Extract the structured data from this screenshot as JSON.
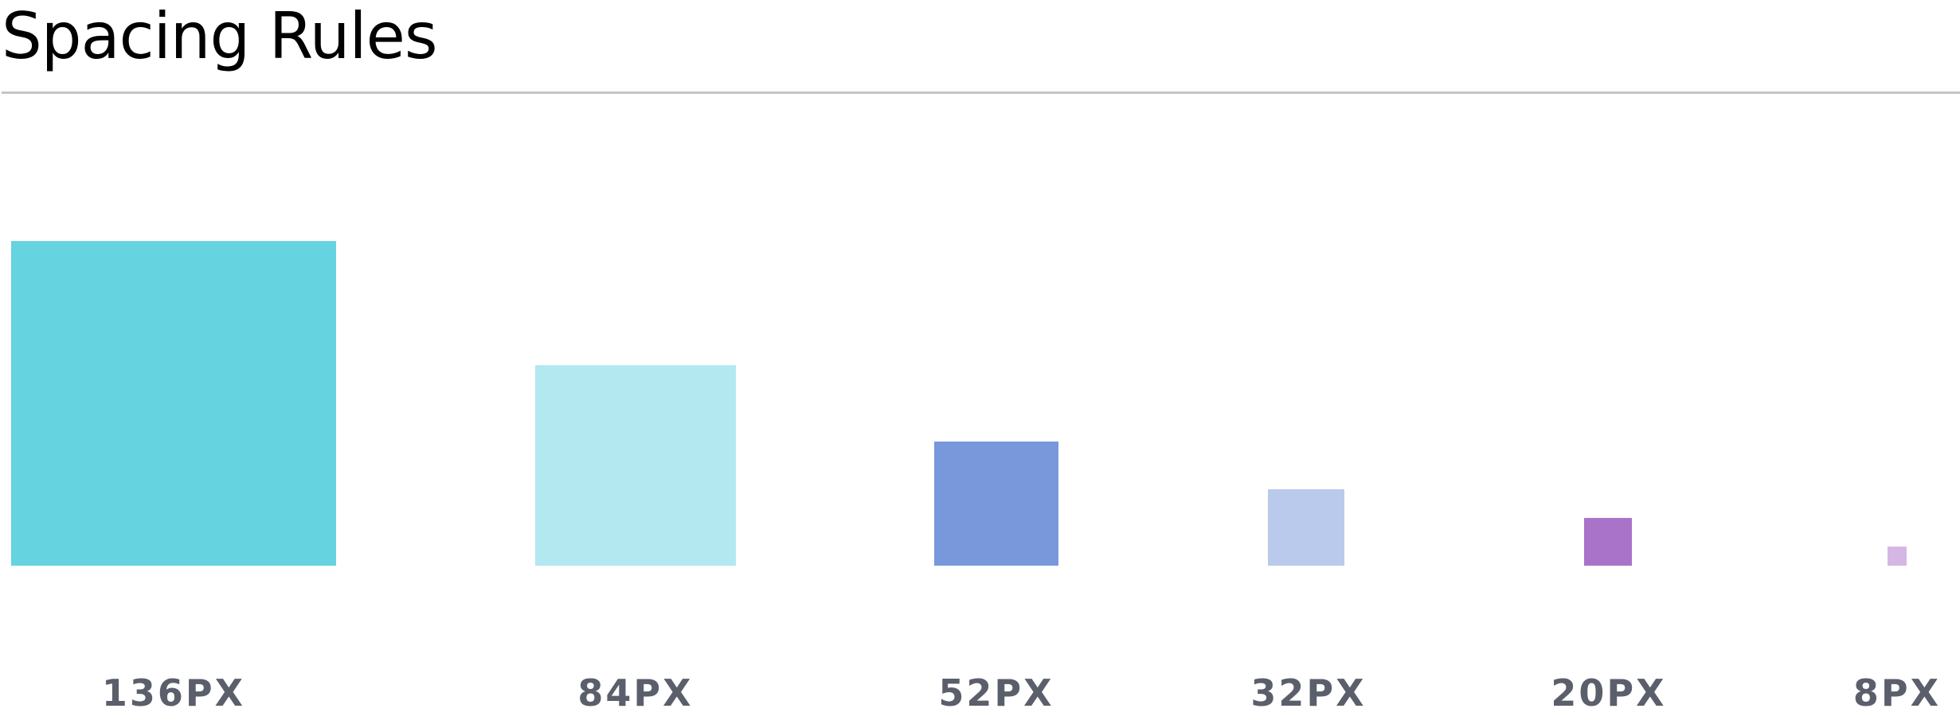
{
  "header": {
    "title": "Spacing Rules"
  },
  "spacing": [
    {
      "label": "136PX",
      "value": 136,
      "color": "#66d3e1"
    },
    {
      "label": "84PX",
      "value": 84,
      "color": "#b3e8f0"
    },
    {
      "label": "52PX",
      "value": 52,
      "color": "#7898db"
    },
    {
      "label": "32PX",
      "value": 32,
      "color": "#b9caec"
    },
    {
      "label": "20PX",
      "value": 20,
      "color": "#a873c9"
    },
    {
      "label": "8PX",
      "value": 8,
      "color": "#d6b6e5"
    }
  ]
}
